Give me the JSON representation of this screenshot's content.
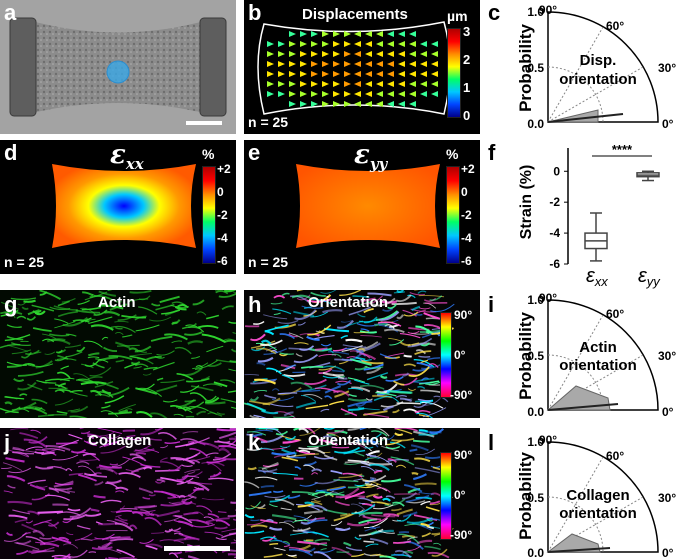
{
  "panels": {
    "a": {
      "letter": "a"
    },
    "b": {
      "letter": "b",
      "title": "Displacements",
      "unit": "µm",
      "ticks": [
        "3",
        "2",
        "1",
        "0"
      ],
      "n_label": "n = 25"
    },
    "c": {
      "letter": "c",
      "ylabel": "Probability",
      "inner_label_1": "Disp.",
      "inner_label_2": "orientation",
      "angle_labels": [
        "90°",
        "60°",
        "30°",
        "0°"
      ],
      "radial_ticks": [
        "1.0",
        "0.5",
        "0.0"
      ]
    },
    "d": {
      "letter": "d",
      "symbol": "ε",
      "sub": "xx",
      "unit": "%",
      "ticks": [
        "+2",
        "0",
        "-2",
        "-4",
        "-6"
      ],
      "n_label": "n = 25"
    },
    "e": {
      "letter": "e",
      "symbol": "ε",
      "sub": "yy",
      "unit": "%",
      "ticks": [
        "+2",
        "0",
        "-2",
        "-4",
        "-6"
      ],
      "n_label": "n = 25"
    },
    "f": {
      "letter": "f",
      "ylabel": "Strain (%)",
      "significance": "****",
      "y_ticks": [
        "0",
        "-2",
        "-4",
        "-6"
      ],
      "x_sym_1": "ε",
      "x_sub_1": "xx",
      "x_sym_2": "ε",
      "x_sub_2": "yy"
    },
    "g": {
      "letter": "g",
      "title": "Actin"
    },
    "h": {
      "letter": "h",
      "title": "Orientation",
      "ticks": [
        "90°",
        "0°",
        "-90°"
      ]
    },
    "i": {
      "letter": "i",
      "ylabel": "Probability",
      "inner_label_1": "Actin",
      "inner_label_2": "orientation",
      "angle_labels": [
        "90°",
        "60°",
        "30°",
        "0°"
      ],
      "radial_ticks": [
        "1.0",
        "0.5",
        "0.0"
      ]
    },
    "j": {
      "letter": "j",
      "title": "Collagen"
    },
    "k": {
      "letter": "k",
      "title": "Orientation",
      "ticks": [
        "90°",
        "0°",
        "-90°"
      ]
    },
    "l": {
      "letter": "l",
      "ylabel": "Probability",
      "inner_label_1": "Collagen",
      "inner_label_2": "orientation",
      "angle_labels": [
        "90°",
        "60°",
        "30°",
        "0°"
      ],
      "radial_ticks": [
        "1.0",
        "0.5",
        "0.0"
      ]
    }
  },
  "chart_data": [
    {
      "type": "box",
      "ylabel": "Strain (%)",
      "ylim": [
        -6,
        1
      ],
      "categories": [
        "εxx",
        "εyy"
      ],
      "boxes": [
        {
          "category": "εxx",
          "min": -5.8,
          "q1": -5.0,
          "median": -4.5,
          "q3": -4.0,
          "max": -2.7
        },
        {
          "category": "εyy",
          "min": -0.6,
          "q1": -0.35,
          "median": -0.25,
          "q3": -0.1,
          "max": 0.0
        }
      ],
      "annotation": "****"
    },
    {
      "type": "polar-histogram",
      "panel": "c",
      "title": "Disp. orientation",
      "angle_range_deg": [
        0,
        90
      ],
      "rlim": [
        0,
        1.0
      ],
      "peak_angle_deg": 3,
      "peak_probability": 0.35
    },
    {
      "type": "polar-histogram",
      "panel": "i",
      "title": "Actin orientation",
      "angle_range_deg": [
        0,
        90
      ],
      "rlim": [
        0,
        1.0
      ],
      "peak_angle_deg": 5,
      "peak_probability": 0.2
    },
    {
      "type": "polar-histogram",
      "panel": "l",
      "title": "Collagen orientation",
      "angle_range_deg": [
        0,
        90
      ],
      "rlim": [
        0,
        1.0
      ],
      "peak_angle_deg": 5,
      "peak_probability": 0.12
    }
  ]
}
